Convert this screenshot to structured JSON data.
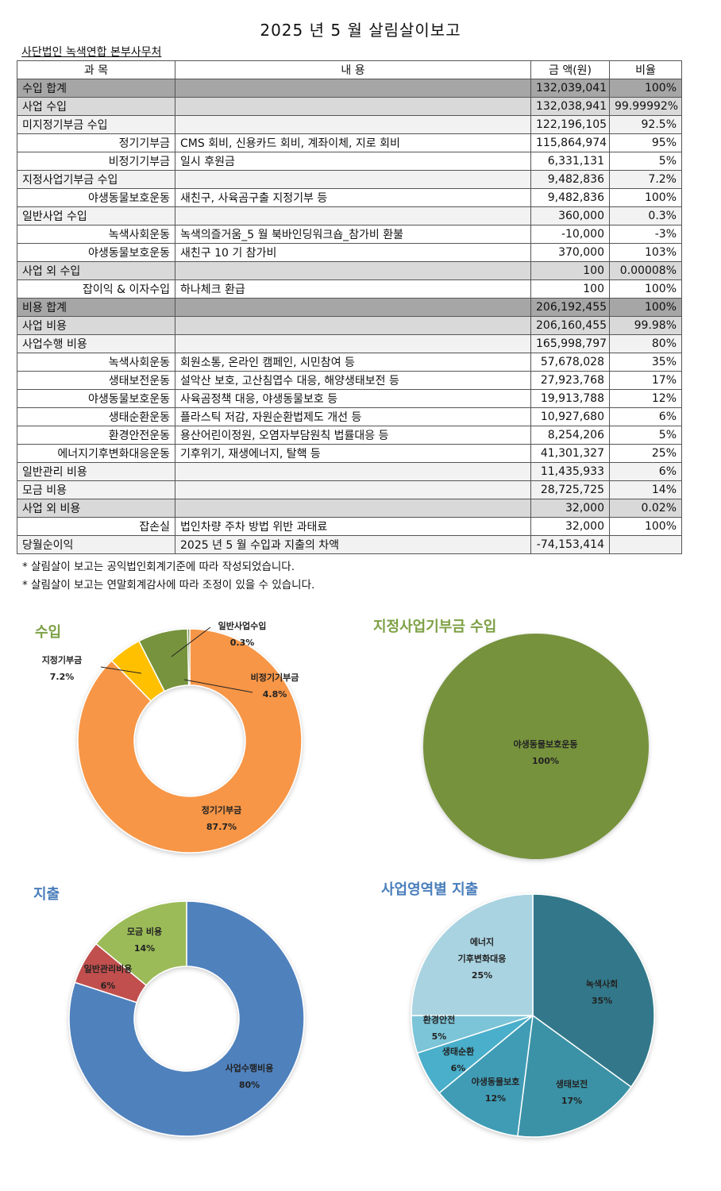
{
  "header": {
    "title": "2025 년 5 월 살림살이보고",
    "organization": "사단법인 녹색연합 본부사무처"
  },
  "table": {
    "columns": [
      "과    목",
      "내    용",
      "금  액(원)",
      "비율"
    ],
    "rows": [
      {
        "level": "lv1",
        "subject": "수입 합계",
        "desc": "",
        "amount": "132,039,041",
        "ratio": "100%",
        "indent": false
      },
      {
        "level": "lv2",
        "subject": "사업 수입",
        "desc": "",
        "amount": "132,038,941",
        "ratio": "99.99992%",
        "indent": false
      },
      {
        "level": "lv3",
        "subject": "미지정기부금 수입",
        "desc": "",
        "amount": "122,196,105",
        "ratio": "92.5%",
        "indent": false
      },
      {
        "level": "lv4",
        "subject": "정기기부금",
        "desc": "CMS 회비, 신용카드 회비, 계좌이체, 지로 회비",
        "amount": "115,864,974",
        "ratio": "95%",
        "indent": true
      },
      {
        "level": "lv4",
        "subject": "비정기기부금",
        "desc": "일시 후원금",
        "amount": "6,331,131",
        "ratio": "5%",
        "indent": true
      },
      {
        "level": "lv3",
        "subject": "지정사업기부금 수입",
        "desc": "",
        "amount": "9,482,836",
        "ratio": "7.2%",
        "indent": false
      },
      {
        "level": "lv4",
        "subject": "야생동물보호운동",
        "desc": "새친구, 사육곰구출 지정기부 등",
        "amount": "9,482,836",
        "ratio": "100%",
        "indent": true
      },
      {
        "level": "lv3",
        "subject": "일반사업 수입",
        "desc": "",
        "amount": "360,000",
        "ratio": "0.3%",
        "indent": false
      },
      {
        "level": "lv4",
        "subject": "녹색사회운동",
        "desc": "녹색의즐거움_5 월 북바인딩워크숍_참가비 환불",
        "amount": "-10,000",
        "ratio": "-3%",
        "indent": true
      },
      {
        "level": "lv4",
        "subject": "야생동물보호운동",
        "desc": "새친구 10 기 참가비",
        "amount": "370,000",
        "ratio": "103%",
        "indent": true
      },
      {
        "level": "lv2",
        "subject": "사업 외 수입",
        "desc": "",
        "amount": "100",
        "ratio": "0.00008%",
        "indent": false
      },
      {
        "level": "lv4",
        "subject": "잡이익 & 이자수입",
        "desc": "하나체크 환급",
        "amount": "100",
        "ratio": "100%",
        "indent": true
      },
      {
        "level": "lv1",
        "subject": "비용 합계",
        "desc": "",
        "amount": "206,192,455",
        "ratio": "100%",
        "indent": false
      },
      {
        "level": "lv2",
        "subject": "사업 비용",
        "desc": "",
        "amount": "206,160,455",
        "ratio": "99.98%",
        "indent": false
      },
      {
        "level": "lv3",
        "subject": "사업수행 비용",
        "desc": "",
        "amount": "165,998,797",
        "ratio": "80%",
        "indent": false
      },
      {
        "level": "lv4",
        "subject": "녹색사회운동",
        "desc": "회원소통, 온라인 캠페인, 시민참여 등",
        "amount": "57,678,028",
        "ratio": "35%",
        "indent": true
      },
      {
        "level": "lv4",
        "subject": "생태보전운동",
        "desc": "설악산 보호, 고산침엽수 대응, 해양생태보전 등",
        "amount": "27,923,768",
        "ratio": "17%",
        "indent": true
      },
      {
        "level": "lv4",
        "subject": "야생동물보호운동",
        "desc": "사육곰정책 대응, 야생동물보호 등",
        "amount": "19,913,788",
        "ratio": "12%",
        "indent": true
      },
      {
        "level": "lv4",
        "subject": "생태순환운동",
        "desc": "플라스틱 저감, 자원순환법제도 개선 등",
        "amount": "10,927,680",
        "ratio": "6%",
        "indent": true
      },
      {
        "level": "lv4",
        "subject": "환경안전운동",
        "desc": "용산어린이정원, 오염자부담원칙 법률대응 등",
        "amount": "8,254,206",
        "ratio": "5%",
        "indent": true
      },
      {
        "level": "lv4",
        "subject": "에너지기후변화대응운동",
        "desc": "기후위기, 재생에너지, 탈핵 등",
        "amount": "41,301,327",
        "ratio": "25%",
        "indent": true
      },
      {
        "level": "lv3",
        "subject": "일반관리 비용",
        "desc": "",
        "amount": "11,435,933",
        "ratio": "6%",
        "indent": false
      },
      {
        "level": "lv3",
        "subject": "모금 비용",
        "desc": "",
        "amount": "28,725,725",
        "ratio": "14%",
        "indent": false
      },
      {
        "level": "lv2",
        "subject": "사업 외 비용",
        "desc": "",
        "amount": "32,000",
        "ratio": "0.02%",
        "indent": false
      },
      {
        "level": "lv4",
        "subject": "잡손실",
        "desc": "법인차량 주차 방법 위반 과태료",
        "amount": "32,000",
        "ratio": "100%",
        "indent": true
      },
      {
        "level": "net",
        "subject": "당월순이익",
        "desc": "2025 년 5 월 수입과 지출의 차액",
        "amount": "-74,153,414",
        "ratio": "",
        "indent": false
      }
    ]
  },
  "notes": [
    "* 살림살이 보고는 공익법인회계기준에 따라 작성되었습니다.",
    "* 살림살이 보고는 연말회계감사에 따라 조정이 있을 수 있습니다."
  ],
  "chart_data": [
    {
      "type": "pie",
      "variant": "donut",
      "title": "수입",
      "categories": [
        "정기기부금",
        "비정기기부금",
        "지정기부금",
        "일반사업수입"
      ],
      "values": [
        87.7,
        4.8,
        7.2,
        0.3
      ],
      "value_labels": [
        "87.7%",
        "4.8%",
        "7.2%",
        "0.3%"
      ],
      "colors": [
        "#f79646",
        "#ffc000",
        "#77933c",
        "#5a7a2a"
      ]
    },
    {
      "type": "pie",
      "title": "지정사업기부금 수입",
      "categories": [
        "야생동물보호운동"
      ],
      "values": [
        100
      ],
      "value_labels": [
        "100%"
      ],
      "colors": [
        "#76923c"
      ]
    },
    {
      "type": "pie",
      "variant": "donut",
      "title": "지출",
      "categories": [
        "사업수행비용",
        "일반관리비용",
        "모금 비용"
      ],
      "values": [
        80,
        6,
        14
      ],
      "value_labels": [
        "80%",
        "6%",
        "14%"
      ],
      "colors": [
        "#4f81bd",
        "#c0504d",
        "#9bbb59"
      ]
    },
    {
      "type": "pie",
      "title": "사업영역별 지출",
      "categories": [
        "녹색사회",
        "생태보전",
        "야생동물보호",
        "생태순환",
        "환경안전",
        "에너지 기후변화대응"
      ],
      "values": [
        35,
        17,
        12,
        6,
        5,
        25
      ],
      "value_labels": [
        "35%",
        "17%",
        "12%",
        "6%",
        "5%",
        "25%"
      ],
      "colors": [
        "#31788a",
        "#3a92a6",
        "#3f9cb5",
        "#4aafcb",
        "#7cc4d8",
        "#a9d3e1"
      ]
    }
  ]
}
